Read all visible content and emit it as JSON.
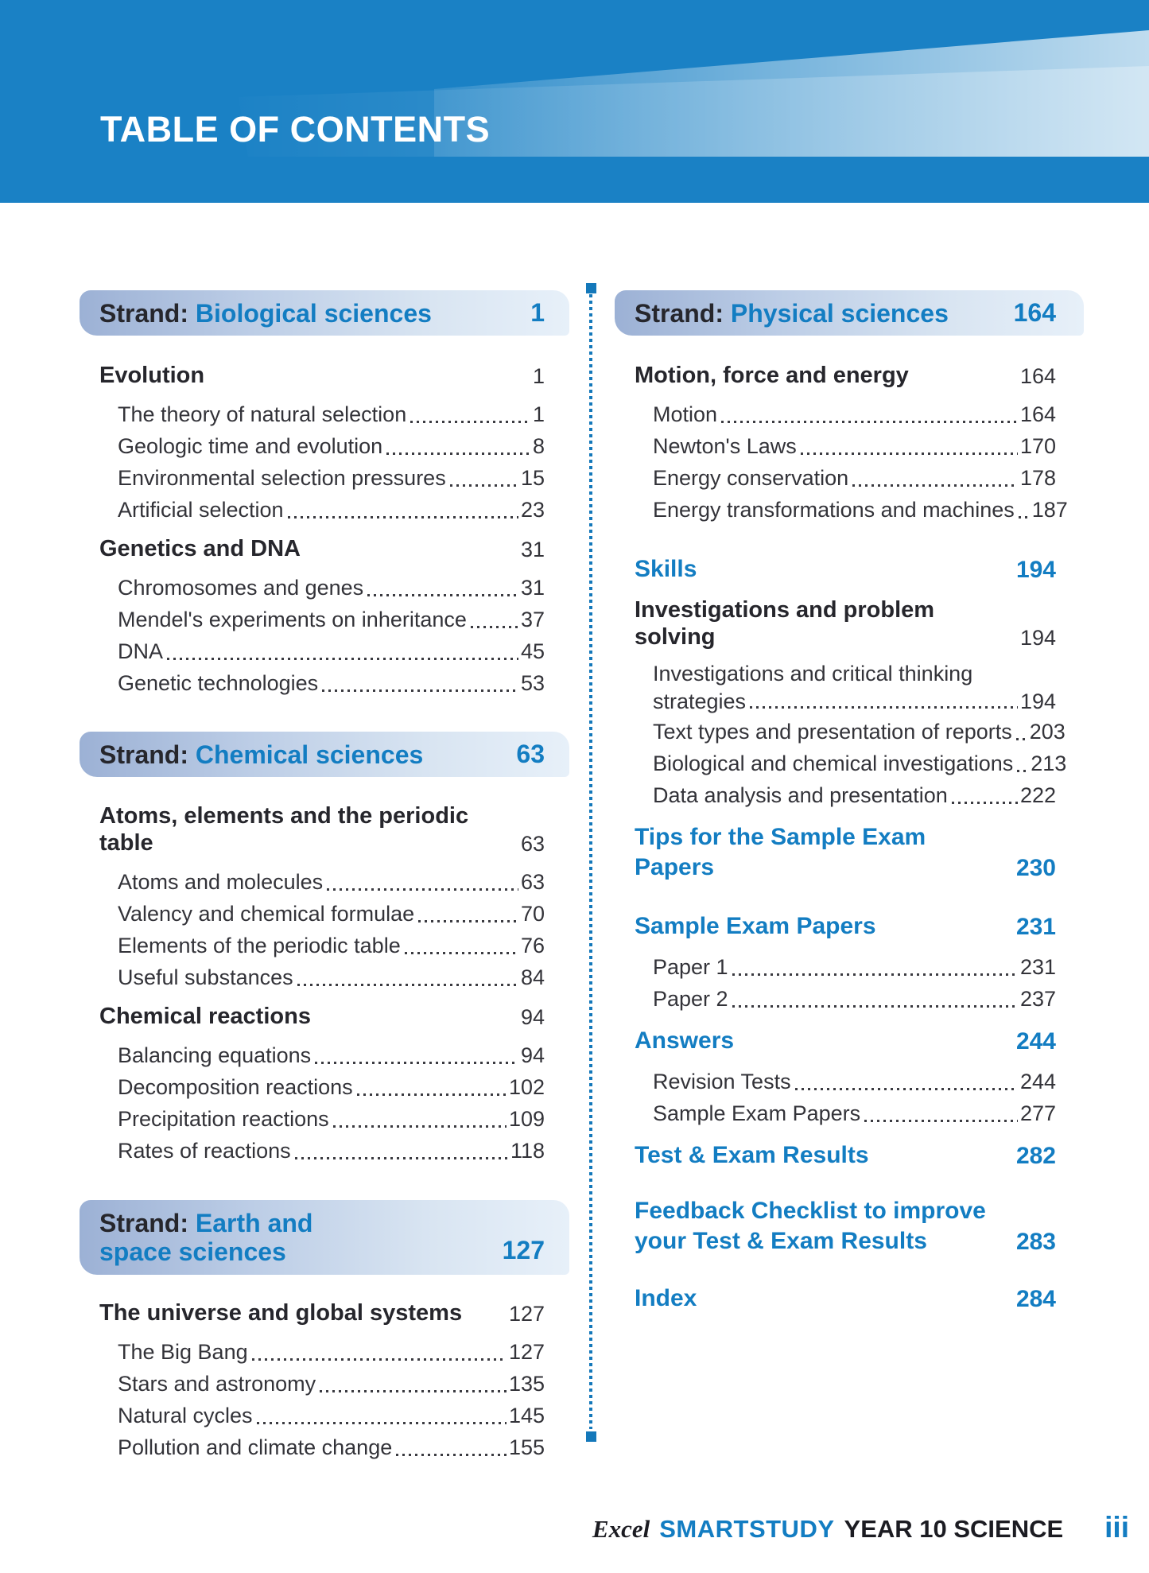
{
  "header": {
    "title": "TABLE OF CONTENTS"
  },
  "colors": {
    "header_blue": "#1a81c5",
    "accent_blue": "#137dc2",
    "dark_text": "#26262c",
    "entry_text": "#333339",
    "divider_blue": "#1478ba",
    "bar_gradient_start": "#9cb1d5",
    "bar_gradient_end": "#e7f0f9"
  },
  "columns": {
    "left": {
      "blocks": [
        {
          "kind": "strand",
          "prefix": "Strand:",
          "name_lines": [
            "Biological sciences"
          ],
          "page": "1"
        },
        {
          "kind": "chapter",
          "title_lines": [
            "Evolution"
          ],
          "page": "1",
          "entries": [
            {
              "label": "The theory of natural selection",
              "page": "1"
            },
            {
              "label": "Geologic time and evolution",
              "page": "8"
            },
            {
              "label": "Environmental selection pressures",
              "page": "15"
            },
            {
              "label": "Artificial selection",
              "page": "23"
            }
          ]
        },
        {
          "kind": "chapter",
          "title_lines": [
            "Genetics and DNA"
          ],
          "page": "31",
          "entries": [
            {
              "label": "Chromosomes and genes",
              "page": "31"
            },
            {
              "label": "Mendel's experiments on inheritance",
              "page": "37"
            },
            {
              "label": "DNA",
              "page": "45"
            },
            {
              "label": "Genetic technologies",
              "page": "53"
            }
          ]
        },
        {
          "kind": "strand",
          "prefix": "Strand:",
          "name_lines": [
            "Chemical sciences"
          ],
          "page": "63"
        },
        {
          "kind": "chapter",
          "title_lines": [
            "Atoms, elements and the periodic",
            "table"
          ],
          "page": "63",
          "entries": [
            {
              "label": "Atoms and molecules",
              "page": "63"
            },
            {
              "label": "Valency and chemical formulae",
              "page": "70"
            },
            {
              "label": "Elements of the periodic table",
              "page": "76"
            },
            {
              "label": "Useful substances",
              "page": "84"
            }
          ]
        },
        {
          "kind": "chapter",
          "title_lines": [
            "Chemical reactions"
          ],
          "page": "94",
          "entries": [
            {
              "label": "Balancing equations",
              "page": "94"
            },
            {
              "label": "Decomposition reactions",
              "page": "102"
            },
            {
              "label": "Precipitation reactions",
              "page": "109"
            },
            {
              "label": "Rates of reactions",
              "page": "118"
            }
          ]
        },
        {
          "kind": "strand",
          "prefix": "Strand:",
          "name_lines": [
            "Earth and",
            "space sciences"
          ],
          "page": "127",
          "tall": true
        },
        {
          "kind": "chapter",
          "title_lines": [
            "The universe and global systems"
          ],
          "page": "127",
          "entries": [
            {
              "label": "The Big Bang",
              "page": "127"
            },
            {
              "label": "Stars and astronomy",
              "page": "135"
            },
            {
              "label": "Natural cycles",
              "page": "145"
            },
            {
              "label": "Pollution and climate change",
              "page": "155"
            }
          ]
        }
      ]
    },
    "right": {
      "blocks": [
        {
          "kind": "strand",
          "prefix": "Strand:",
          "name_lines": [
            "Physical sciences"
          ],
          "page": "164"
        },
        {
          "kind": "chapter",
          "title_lines": [
            "Motion, force and energy"
          ],
          "page": "164",
          "entries": [
            {
              "label": "Motion",
              "page": "164"
            },
            {
              "label": "Newton's Laws",
              "page": "170"
            },
            {
              "label": "Energy conservation",
              "page": "178"
            },
            {
              "label": "Energy transformations and machines",
              "page": "187"
            }
          ]
        },
        {
          "kind": "blue",
          "title_lines": [
            "Skills"
          ],
          "page": "194"
        },
        {
          "kind": "chapter",
          "title_lines": [
            "Investigations and problem solving"
          ],
          "page": "194",
          "entries": [
            {
              "pre_line": "Investigations and critical thinking",
              "label": "strategies",
              "page": "194"
            },
            {
              "label": "Text types and presentation of reports",
              "page": "203"
            },
            {
              "label": "Biological and chemical investigations",
              "page": "213"
            },
            {
              "label": "Data analysis and presentation",
              "page": "222"
            }
          ]
        },
        {
          "kind": "blue",
          "title_lines": [
            "Tips for the Sample Exam",
            "Papers"
          ],
          "page": "230"
        },
        {
          "kind": "blue",
          "title_lines": [
            "Sample Exam Papers"
          ],
          "page": "231",
          "entries": [
            {
              "label": "Paper 1",
              "page": "231"
            },
            {
              "label": "Paper 2",
              "page": "237"
            }
          ]
        },
        {
          "kind": "blue",
          "title_lines": [
            "Answers"
          ],
          "page": "244",
          "entries": [
            {
              "label": "Revision Tests",
              "page": "244"
            },
            {
              "label": "Sample Exam Papers",
              "page": "277"
            }
          ]
        },
        {
          "kind": "blue",
          "title_lines": [
            "Test & Exam Results"
          ],
          "page": "282"
        },
        {
          "kind": "blue",
          "title_lines": [
            "Feedback Checklist to improve",
            "your Test & Exam Results"
          ],
          "page": "283"
        },
        {
          "kind": "blue",
          "title_lines": [
            "Index"
          ],
          "page": "284"
        }
      ]
    }
  },
  "footer": {
    "brand_italic": "Excel",
    "brand_bold": "SMARTSTUDY",
    "series": "YEAR 10 SCIENCE",
    "page": "iii"
  }
}
